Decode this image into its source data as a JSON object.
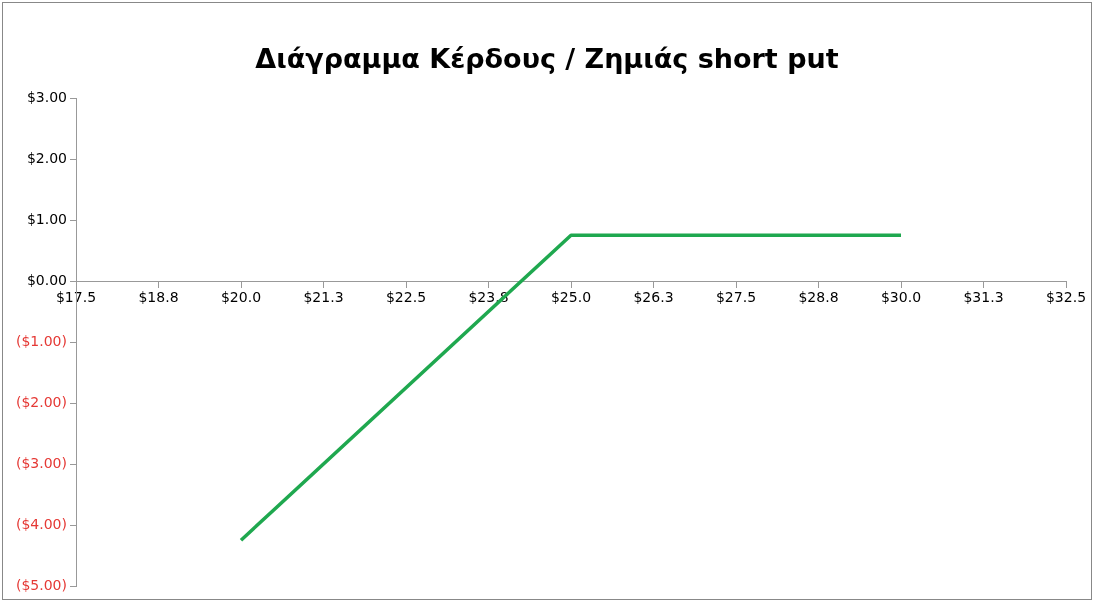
{
  "chart_data": {
    "type": "line",
    "title": "Διάγραμμα Κέρδους / Ζημιάς short put",
    "x": [
      20,
      25,
      30
    ],
    "series": [
      {
        "color": "#1fa84f",
        "values": [
          -4.25,
          0.75,
          0.75
        ]
      }
    ],
    "xlim": [
      17.5,
      32.5
    ],
    "xticks": [
      {
        "value": 17.5,
        "label": "$17.5"
      },
      {
        "value": 18.75,
        "label": "$18.8"
      },
      {
        "value": 20,
        "label": "$20.0"
      },
      {
        "value": 21.25,
        "label": "$21.3"
      },
      {
        "value": 22.5,
        "label": "$22.5"
      },
      {
        "value": 23.75,
        "label": "$23.8"
      },
      {
        "value": 25,
        "label": "$25.0"
      },
      {
        "value": 26.25,
        "label": "$26.3"
      },
      {
        "value": 27.5,
        "label": "$27.5"
      },
      {
        "value": 28.75,
        "label": "$28.8"
      },
      {
        "value": 30,
        "label": "$30.0"
      },
      {
        "value": 31.25,
        "label": "$31.3"
      },
      {
        "value": 32.5,
        "label": "$32.5"
      }
    ],
    "ylim": [
      -5,
      3
    ],
    "yticks": [
      {
        "value": 3,
        "label": "$3.00"
      },
      {
        "value": 2,
        "label": "$2.00"
      },
      {
        "value": 1,
        "label": "$1.00"
      },
      {
        "value": 0,
        "label": "$0.00"
      },
      {
        "value": -1,
        "label": "($1.00)"
      },
      {
        "value": -2,
        "label": "($2.00)"
      },
      {
        "value": -3,
        "label": "($3.00)"
      },
      {
        "value": -4,
        "label": "($4.00)"
      },
      {
        "value": -5,
        "label": "($5.00)"
      }
    ],
    "grid": false,
    "legend": false,
    "marker": "none",
    "line_style": "solid"
  }
}
